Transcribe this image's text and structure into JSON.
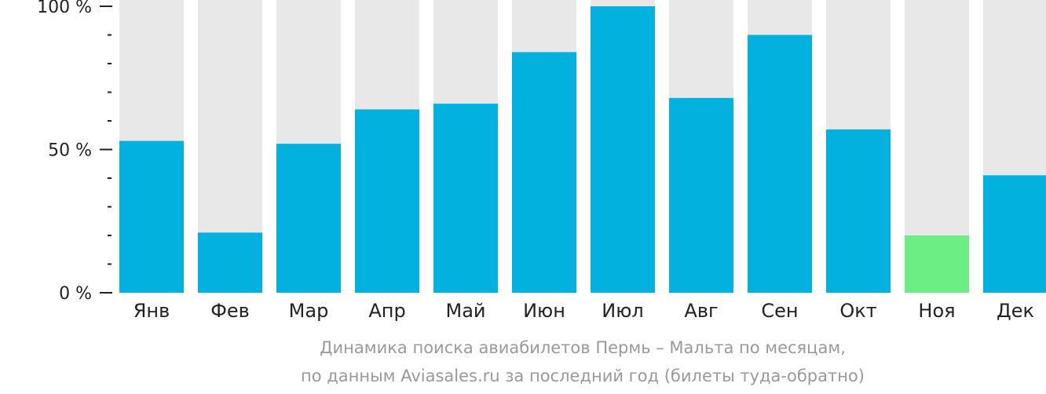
{
  "chart_data": {
    "type": "bar",
    "categories": [
      "Янв",
      "Фев",
      "Мар",
      "Апр",
      "Май",
      "Июн",
      "Июл",
      "Авг",
      "Сен",
      "Окт",
      "Ноя",
      "Дек"
    ],
    "values": [
      53,
      21,
      52,
      64,
      66,
      84,
      100,
      68,
      90,
      57,
      20,
      41
    ],
    "ylim": [
      0,
      100
    ],
    "yticks": [
      {
        "value": 100,
        "label": "100 %"
      },
      {
        "value": 50,
        "label": "50 %"
      },
      {
        "value": 0,
        "label": "0 %"
      }
    ],
    "minor_tick_step": 10,
    "highlight_index": 10,
    "colors": {
      "bar": "#02B1DD",
      "highlight": "#6CEE85",
      "track": "#E8E8E8",
      "axis": "#222222"
    },
    "grid": false,
    "legend": "none"
  },
  "caption": {
    "line1": "Динамика поиска авиабилетов Пермь – Мальта по месяцам,",
    "line2": "по данным Aviasales.ru за последний год (билеты туда-обратно)"
  }
}
